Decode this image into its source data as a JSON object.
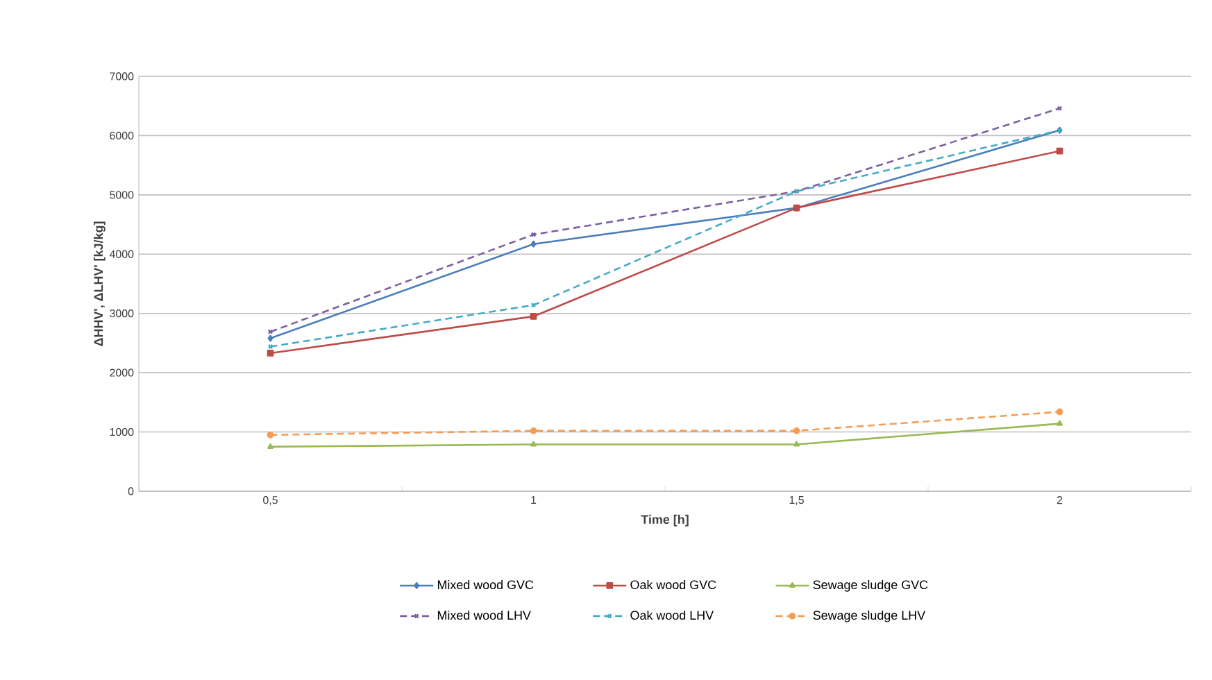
{
  "chart_data": {
    "type": "line",
    "xlabel": "Time [h]",
    "ylabel": "ΔHHV', ΔLHV' [kJ/kg]",
    "categories": [
      "0,5",
      "1",
      "1,5",
      "2"
    ],
    "ylim": [
      0,
      7000
    ],
    "yticks": [
      0,
      1000,
      2000,
      3000,
      4000,
      5000,
      6000,
      7000
    ],
    "grid": "y",
    "legend": "bottom",
    "series": [
      {
        "name": "Mixed wood GVC",
        "color": "#4a7ebb",
        "marker": "diamond",
        "line_style": "solid",
        "values": [
          2580,
          4170,
          4780,
          6090
        ]
      },
      {
        "name": "Oak wood GVC",
        "color": "#be4b48",
        "marker": "square",
        "line_style": "solid",
        "values": [
          2330,
          2950,
          4780,
          5740
        ]
      },
      {
        "name": "Sewage sludge GVC",
        "color": "#98b954",
        "marker": "triangle",
        "line_style": "solid",
        "values": [
          750,
          790,
          790,
          1140
        ]
      },
      {
        "name": "Mixed wood  LHV",
        "color": "#7d60a0",
        "marker": "cross",
        "line_style": "dashed",
        "values": [
          2690,
          4330,
          5060,
          6460
        ]
      },
      {
        "name": "Oak wood  LHV",
        "color": "#46aac5",
        "marker": "cross",
        "line_style": "dashed",
        "values": [
          2440,
          3140,
          5060,
          6090
        ]
      },
      {
        "name": "Sewage sludge LHV",
        "color": "#f59d56",
        "marker": "circle",
        "line_style": "dashed",
        "values": [
          950,
          1020,
          1020,
          1340
        ]
      }
    ]
  }
}
